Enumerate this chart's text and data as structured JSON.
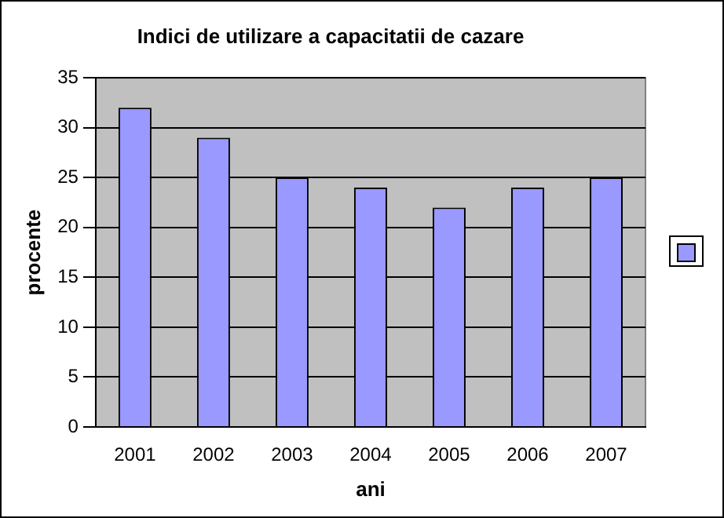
{
  "chart_data": {
    "type": "bar",
    "title": "Indici de utilizare a capacitatii de cazare",
    "xlabel": "ani",
    "ylabel": "procente",
    "categories": [
      "2001",
      "2002",
      "2003",
      "2004",
      "2005",
      "2006",
      "2007"
    ],
    "series": [
      {
        "color": "#9999ff",
        "values": [
          32,
          29,
          25,
          24,
          22,
          24,
          25
        ]
      }
    ],
    "ylim": [
      0,
      35
    ],
    "yticks": [
      0,
      5,
      10,
      15,
      20,
      25,
      30,
      35
    ],
    "grid": "y"
  }
}
